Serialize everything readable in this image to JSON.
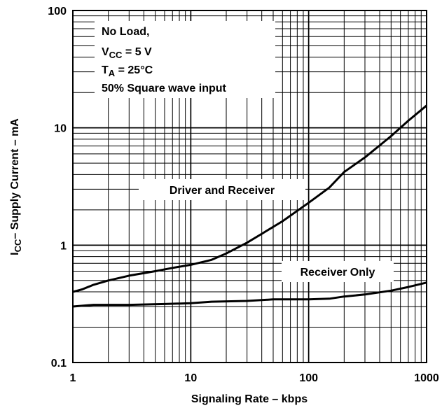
{
  "chart_data": {
    "type": "line",
    "xscale": "log",
    "yscale": "log",
    "xlim": [
      1,
      1000
    ],
    "ylim": [
      0.1,
      100
    ],
    "grid": true,
    "xlabel": "Signaling Rate  – kbps",
    "ylabel": {
      "main": "I",
      "sub": "CC",
      "rest": "– Supply Current – mA"
    },
    "xticks": [
      {
        "value": 1,
        "label": "1"
      },
      {
        "value": 10,
        "label": "10"
      },
      {
        "value": 100,
        "label": "100"
      },
      {
        "value": 1000,
        "label": "1000"
      }
    ],
    "yticks": [
      {
        "value": 100,
        "label": "100"
      },
      {
        "value": 10,
        "label": "10"
      },
      {
        "value": 1,
        "label": "1"
      },
      {
        "value": 0.1,
        "label": "0.1"
      }
    ],
    "annotation": {
      "line1": "No Load,",
      "line2": {
        "main": "V",
        "sub": "CC",
        "rest": " = 5 V"
      },
      "line3": {
        "main": "T",
        "sub": "A",
        "rest": " = 25°C"
      },
      "line4": "50% Square wave input"
    },
    "series": [
      {
        "name": "Driver and Receiver",
        "x": [
          1,
          1.2,
          1.5,
          2,
          3,
          5,
          7,
          10,
          15,
          20,
          30,
          40,
          60,
          100,
          150,
          200,
          300,
          500,
          700,
          1000
        ],
        "y": [
          0.4,
          0.42,
          0.46,
          0.5,
          0.55,
          0.6,
          0.64,
          0.68,
          0.75,
          0.85,
          1.05,
          1.25,
          1.6,
          2.3,
          3.1,
          4.2,
          5.6,
          8.5,
          11.5,
          15.5
        ]
      },
      {
        "name": "Receiver Only",
        "x": [
          1,
          1.5,
          3,
          6,
          10,
          15,
          30,
          50,
          100,
          150,
          200,
          300,
          500,
          700,
          1000
        ],
        "y": [
          0.3,
          0.31,
          0.31,
          0.315,
          0.32,
          0.33,
          0.335,
          0.345,
          0.345,
          0.35,
          0.365,
          0.38,
          0.41,
          0.44,
          0.48
        ]
      }
    ]
  }
}
